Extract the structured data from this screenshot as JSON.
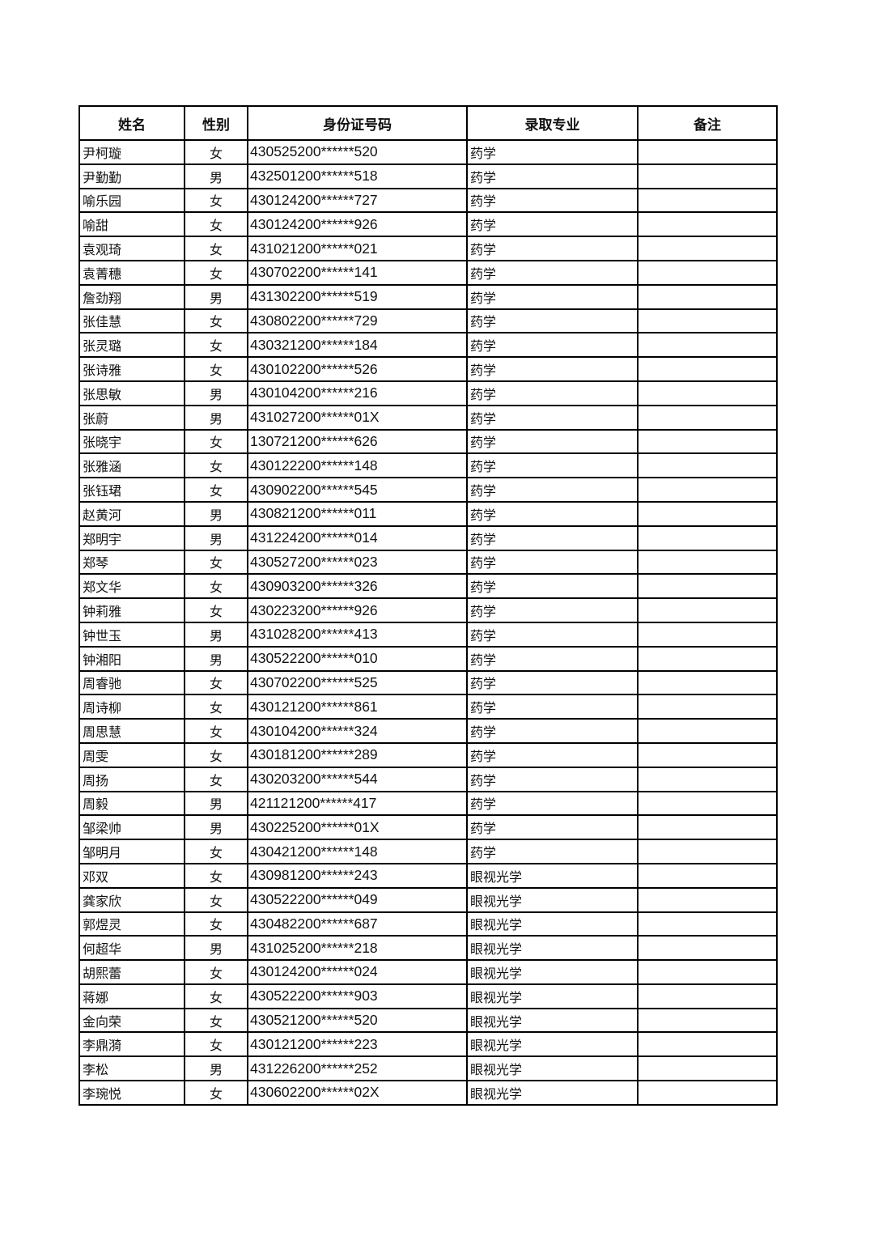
{
  "table": {
    "headers": [
      "姓名",
      "性别",
      "身份证号码",
      "录取专业",
      "备注"
    ],
    "rows": [
      [
        "尹柯璇",
        "女",
        "430525200******520",
        "药学",
        ""
      ],
      [
        "尹勤勤",
        "男",
        "432501200******518",
        "药学",
        ""
      ],
      [
        "喻乐园",
        "女",
        "430124200******727",
        "药学",
        ""
      ],
      [
        "喻甜",
        "女",
        "430124200******926",
        "药学",
        ""
      ],
      [
        "袁观琦",
        "女",
        "431021200******021",
        "药学",
        ""
      ],
      [
        "袁菁穗",
        "女",
        "430702200******141",
        "药学",
        ""
      ],
      [
        "詹劲翔",
        "男",
        "431302200******519",
        "药学",
        ""
      ],
      [
        "张佳慧",
        "女",
        "430802200******729",
        "药学",
        ""
      ],
      [
        "张灵璐",
        "女",
        "430321200******184",
        "药学",
        ""
      ],
      [
        "张诗雅",
        "女",
        "430102200******526",
        "药学",
        ""
      ],
      [
        "张思敏",
        "男",
        "430104200******216",
        "药学",
        ""
      ],
      [
        "张蔚",
        "男",
        "431027200******01X",
        "药学",
        ""
      ],
      [
        "张晓宇",
        "女",
        "130721200******626",
        "药学",
        ""
      ],
      [
        "张雅涵",
        "女",
        "430122200******148",
        "药学",
        ""
      ],
      [
        "张钰珺",
        "女",
        "430902200******545",
        "药学",
        ""
      ],
      [
        "赵黄河",
        "男",
        "430821200******011",
        "药学",
        ""
      ],
      [
        "郑明宇",
        "男",
        "431224200******014",
        "药学",
        ""
      ],
      [
        "郑琴",
        "女",
        "430527200******023",
        "药学",
        ""
      ],
      [
        "郑文华",
        "女",
        "430903200******326",
        "药学",
        ""
      ],
      [
        "钟莉雅",
        "女",
        "430223200******926",
        "药学",
        ""
      ],
      [
        "钟世玉",
        "男",
        "431028200******413",
        "药学",
        ""
      ],
      [
        "钟湘阳",
        "男",
        "430522200******010",
        "药学",
        ""
      ],
      [
        "周睿驰",
        "女",
        "430702200******525",
        "药学",
        ""
      ],
      [
        "周诗柳",
        "女",
        "430121200******861",
        "药学",
        ""
      ],
      [
        "周思慧",
        "女",
        "430104200******324",
        "药学",
        ""
      ],
      [
        "周雯",
        "女",
        "430181200******289",
        "药学",
        ""
      ],
      [
        "周扬",
        "女",
        "430203200******544",
        "药学",
        ""
      ],
      [
        "周毅",
        "男",
        "421121200******417",
        "药学",
        ""
      ],
      [
        "邹梁帅",
        "男",
        "430225200******01X",
        "药学",
        ""
      ],
      [
        "邹明月",
        "女",
        "430421200******148",
        "药学",
        ""
      ],
      [
        "邓双",
        "女",
        "430981200******243",
        "眼视光学",
        ""
      ],
      [
        "龚家欣",
        "女",
        "430522200******049",
        "眼视光学",
        ""
      ],
      [
        "郭煜灵",
        "女",
        "430482200******687",
        "眼视光学",
        ""
      ],
      [
        "何超华",
        "男",
        "431025200******218",
        "眼视光学",
        ""
      ],
      [
        "胡熙蕾",
        "女",
        "430124200******024",
        "眼视光学",
        ""
      ],
      [
        "蒋娜",
        "女",
        "430522200******903",
        "眼视光学",
        ""
      ],
      [
        "金向荣",
        "女",
        "430521200******520",
        "眼视光学",
        ""
      ],
      [
        "李鼎漪",
        "女",
        "430121200******223",
        "眼视光学",
        ""
      ],
      [
        "李松",
        "男",
        "431226200******252",
        "眼视光学",
        ""
      ],
      [
        "李琬悦",
        "女",
        "430602200******02X",
        "眼视光学",
        ""
      ]
    ]
  }
}
